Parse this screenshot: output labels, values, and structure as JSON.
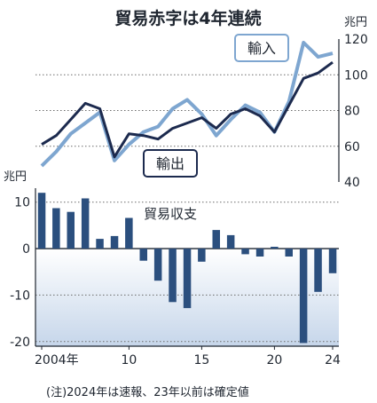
{
  "title": "貿易赤字は4年連続",
  "note": "(注)2024年は速報、23年以前は確定値",
  "colors": {
    "imports": "#7ea6d0",
    "exports": "#1c2a4e",
    "balance_bar": "#2b4f7e",
    "balance_bg_top": "#ffffff",
    "balance_bg_bottom": "#c6d6ea"
  },
  "chart_data": [
    {
      "type": "line",
      "unit_label": "兆円",
      "x": [
        2004,
        2005,
        2006,
        2007,
        2008,
        2009,
        2010,
        2011,
        2012,
        2013,
        2014,
        2015,
        2016,
        2017,
        2018,
        2019,
        2020,
        2021,
        2022,
        2023,
        2024
      ],
      "series": [
        {
          "name": "輸入",
          "values": [
            49,
            57,
            67,
            73,
            79,
            52,
            61,
            68,
            71,
            81,
            86,
            78,
            66,
            75,
            83,
            79,
            68,
            85,
            118,
            110,
            112
          ]
        },
        {
          "name": "輸出",
          "values": [
            61,
            66,
            75,
            84,
            81,
            54,
            67,
            66,
            64,
            70,
            73,
            76,
            70,
            78,
            81,
            77,
            68,
            83,
            98,
            101,
            107
          ]
        }
      ],
      "ylim": [
        40,
        120
      ],
      "yticks": [
        40,
        60,
        80,
        100,
        120
      ],
      "grid": true
    },
    {
      "type": "bar",
      "title": "貿易収支",
      "unit_label": "兆円",
      "x": [
        2004,
        2005,
        2006,
        2007,
        2008,
        2009,
        2010,
        2011,
        2012,
        2013,
        2014,
        2015,
        2016,
        2017,
        2018,
        2019,
        2020,
        2021,
        2022,
        2023,
        2024
      ],
      "values": [
        12,
        8.7,
        7.9,
        10.8,
        2.1,
        2.7,
        6.6,
        -2.6,
        -6.9,
        -11.5,
        -12.8,
        -2.8,
        4.0,
        2.9,
        -1.2,
        -1.7,
        0.4,
        -1.7,
        -20.3,
        -9.3,
        -5.3
      ],
      "ylim": [
        -21,
        13
      ],
      "yticks": [
        -20,
        -10,
        0,
        10
      ],
      "xticks": [
        {
          "value": 2004,
          "label": "2004年"
        },
        {
          "value": 2010,
          "label": "10"
        },
        {
          "value": 2015,
          "label": "15"
        },
        {
          "value": 2020,
          "label": "20"
        },
        {
          "value": 2024,
          "label": "24"
        }
      ]
    }
  ]
}
